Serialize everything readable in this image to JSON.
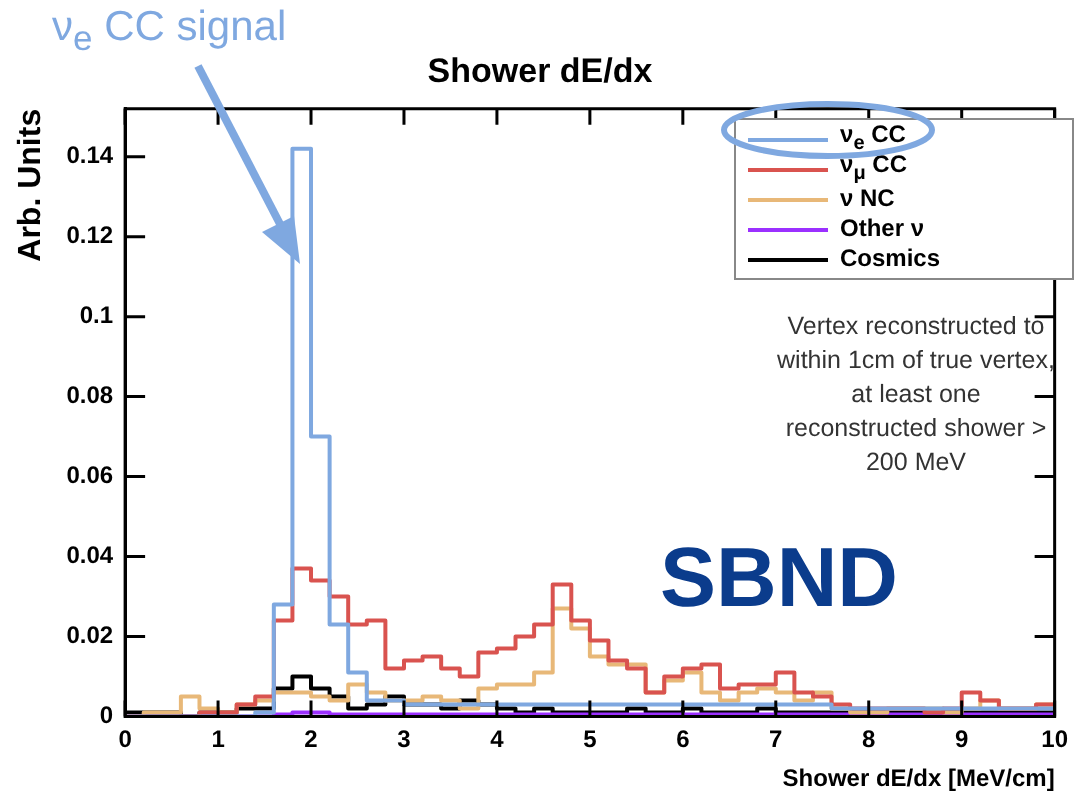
{
  "chart_data": {
    "type": "histogram",
    "title": "Shower dE/dx",
    "xlabel": "Shower dE/dx [MeV/cm]",
    "ylabel": "Arb. Units",
    "bins": [
      0,
      0.2,
      0.4,
      0.6,
      0.8,
      1,
      1.2,
      1.4,
      1.6,
      1.8,
      2,
      2.2,
      2.4,
      2.6,
      2.8,
      3,
      3.2,
      3.4,
      3.6,
      3.8,
      4,
      4.2,
      4.4,
      4.6,
      4.8,
      5,
      5.2,
      5.4,
      5.6,
      5.8,
      6,
      6.2,
      6.4,
      6.6,
      6.8,
      7,
      7.2,
      7.4,
      7.6,
      7.8,
      8,
      8.2,
      8.4,
      8.6,
      8.8,
      9,
      9.2,
      9.4,
      9.6,
      9.8,
      10
    ],
    "series": [
      {
        "name": "ν$_{e}$ CC",
        "color": "#7fa8e0",
        "values": [
          0,
          0,
          0,
          0,
          0,
          0,
          0,
          0.001,
          0.028,
          0.142,
          0.07,
          0.023,
          0.011,
          0.004,
          0.004,
          0.003,
          0.003,
          0.003,
          0.003,
          0.003,
          0.003,
          0.003,
          0.003,
          0.003,
          0.003,
          0.003,
          0.003,
          0.003,
          0.003,
          0.003,
          0.003,
          0.003,
          0.003,
          0.003,
          0.003,
          0.003,
          0.003,
          0.003,
          0.002,
          0.002,
          0.002,
          0.002,
          0.002,
          0.002,
          0.002,
          0.002,
          0.002,
          0.002,
          0.002,
          0.002
        ]
      },
      {
        "name": "ν$_{μ}$ CC",
        "color": "#d9534f",
        "values": [
          0,
          0,
          0,
          0,
          0.001,
          0.001,
          0.003,
          0.005,
          0.024,
          0.037,
          0.034,
          0.03,
          0.023,
          0.024,
          0.012,
          0.014,
          0.015,
          0.012,
          0.01,
          0.016,
          0.017,
          0.02,
          0.023,
          0.033,
          0.024,
          0.019,
          0.014,
          0.012,
          0.006,
          0.01,
          0.012,
          0.013,
          0.007,
          0.008,
          0.008,
          0.011,
          0.006,
          0.005,
          0.003,
          0.002,
          0.002,
          0.002,
          0.002,
          0.001,
          0.002,
          0.006,
          0.004,
          0.002,
          0.002,
          0.003
        ]
      },
      {
        "name": "ν NC",
        "color": "#e8b878",
        "values": [
          0,
          0.001,
          0.001,
          0.005,
          0.002,
          0.001,
          0.003,
          0.004,
          0.006,
          0.006,
          0.005,
          0.004,
          0.008,
          0.006,
          0.004,
          0.004,
          0.005,
          0.004,
          0.002,
          0.007,
          0.008,
          0.008,
          0.011,
          0.027,
          0.022,
          0.015,
          0.013,
          0.013,
          0.006,
          0.009,
          0.011,
          0.006,
          0.004,
          0.006,
          0.007,
          0.006,
          0.004,
          0.006,
          0.002,
          0.001,
          0.001,
          0.002,
          0.002,
          0.002,
          0.001,
          0.002,
          0.004,
          0.002,
          0.002,
          0.003
        ]
      },
      {
        "name": "Other ν",
        "color": "#9b30ff",
        "values": [
          0,
          0,
          0,
          0,
          0,
          0,
          0,
          0,
          0.0005,
          0.001,
          0.001,
          0.0005,
          0.0005,
          0.0005,
          0.0005,
          0.0005,
          0.0005,
          0.0005,
          0.0005,
          0.0005,
          0.0005,
          0.0005,
          0.0005,
          0.0005,
          0.0005,
          0.0005,
          0.0005,
          0.0005,
          0.0005,
          0.0005,
          0.0005,
          0.0005,
          0.0005,
          0.0005,
          0.0005,
          0.0005,
          0.0005,
          0.0005,
          0.0005,
          0.0005,
          0.0005,
          0.0005,
          0.0005,
          0.0005,
          0.0005,
          0.0005,
          0.0005,
          0.0005,
          0.0005,
          0.0005
        ]
      },
      {
        "name": "Cosmics",
        "color": "#000000",
        "values": [
          0.001,
          0.001,
          0.001,
          0,
          0.001,
          0.001,
          0.002,
          0.002,
          0.007,
          0.01,
          0.007,
          0.005,
          0.002,
          0.003,
          0.005,
          0.003,
          0.003,
          0.002,
          0.004,
          0.003,
          0.002,
          0.001,
          0.002,
          0.001,
          0.001,
          0.001,
          0.001,
          0.002,
          0.001,
          0.001,
          0.002,
          0.001,
          0.001,
          0.001,
          0.002,
          0.001,
          0.001,
          0.001,
          0.001,
          0.001,
          0.001,
          0.001,
          0.001,
          0.001,
          0.001,
          0.001,
          0.001,
          0.001,
          0.001,
          0.001
        ]
      }
    ],
    "xlim": [
      0,
      10
    ],
    "xticks": [
      0,
      1,
      2,
      3,
      4,
      5,
      6,
      7,
      8,
      9,
      10
    ],
    "ylim": [
      0,
      0.152
    ],
    "yticks": [
      0,
      0.02,
      0.04,
      0.06,
      0.08,
      0.1,
      0.12,
      0.14
    ],
    "grid": false,
    "legend": "top right",
    "annotations": [
      "ν$_{e}$ CC signal",
      "Vertex reconstructed to within 1cm of true vertex, at least one reconstructed shower > 200 MeV",
      "SBND"
    ]
  }
}
